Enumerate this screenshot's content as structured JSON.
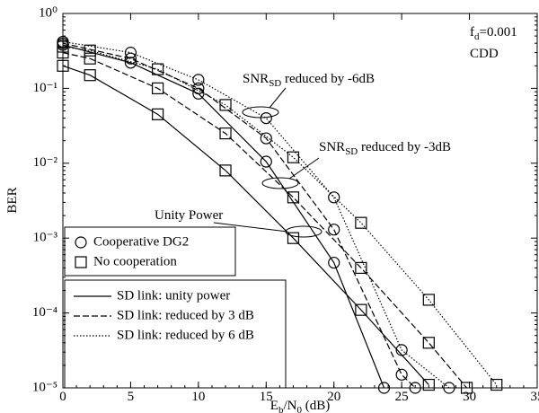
{
  "chart_data": {
    "type": "line",
    "y_label": "BER",
    "x_label": [
      {
        "text": "E"
      },
      {
        "text": "b",
        "sub": true
      },
      {
        "text": "/N"
      },
      {
        "text": "0",
        "sub": true
      },
      {
        "text": " (dB)"
      }
    ],
    "xlim": [
      0,
      35
    ],
    "xticks": [
      0,
      5,
      10,
      15,
      20,
      25,
      30,
      35
    ],
    "ylim": [
      1e-05,
      1
    ],
    "yscale": "log",
    "yticks": [
      {
        "value": 1,
        "label": "10⁰"
      },
      {
        "value": 0.1,
        "label": "10⁻¹"
      },
      {
        "value": 0.01,
        "label": "10⁻²"
      },
      {
        "value": 0.001,
        "label": "10⁻³"
      },
      {
        "value": 0.0001,
        "label": "10⁻⁴"
      },
      {
        "value": 1e-05,
        "label": "10⁻⁵"
      }
    ],
    "series": [
      {
        "marker": "circle",
        "dash": "solid",
        "color": "#000000",
        "x": [
          0,
          5,
          10,
          15,
          20,
          23.7
        ],
        "values": [
          0.38,
          0.22,
          0.085,
          0.0105,
          0.00047,
          1e-05
        ]
      },
      {
        "marker": "circle",
        "dash": "dashed",
        "color": "#000000",
        "x": [
          0,
          5,
          10,
          15,
          20,
          25,
          26
        ],
        "values": [
          0.4,
          0.25,
          0.1,
          0.0215,
          0.0013,
          1.5e-05,
          1e-05
        ]
      },
      {
        "marker": "circle",
        "dash": "dotted",
        "color": "#000000",
        "x": [
          0,
          5,
          10,
          15,
          20,
          25,
          28.5
        ],
        "values": [
          0.42,
          0.3,
          0.13,
          0.04,
          0.0035,
          3.2e-05,
          1e-05
        ]
      },
      {
        "marker": "square",
        "dash": "solid",
        "color": "#000000",
        "x": [
          0,
          2,
          7,
          12,
          17,
          22,
          27
        ],
        "values": [
          0.2,
          0.15,
          0.045,
          0.008,
          0.001,
          0.00011,
          1.1e-05
        ]
      },
      {
        "marker": "square",
        "dash": "dashed",
        "color": "#000000",
        "x": [
          0,
          2,
          7,
          12,
          17,
          22,
          27,
          29.8
        ],
        "values": [
          0.3,
          0.25,
          0.1,
          0.025,
          0.0035,
          0.0004,
          4e-05,
          1e-05
        ]
      },
      {
        "marker": "square",
        "dash": "dotted",
        "color": "#000000",
        "x": [
          0,
          2,
          7,
          12,
          17,
          22,
          27,
          32
        ],
        "values": [
          0.36,
          0.32,
          0.18,
          0.06,
          0.012,
          0.0016,
          0.00015,
          1.1e-05
        ]
      }
    ],
    "marker_legend": [
      {
        "marker": "circle",
        "label": "Cooperative DG2"
      },
      {
        "marker": "square",
        "label": "No cooperation"
      }
    ],
    "line_legend": [
      {
        "dash": "solid",
        "label": "SD link: unity power"
      },
      {
        "dash": "dashed",
        "label": "SD link: reduced by 3 dB"
      },
      {
        "dash": "dotted",
        "label": "SD link: reduced by 6 dB"
      }
    ],
    "annotations": [
      [
        {
          "text": "f"
        },
        {
          "text": "d",
          "sub": true
        },
        {
          "text": "=0.001"
        }
      ],
      [
        {
          "text": "CDD"
        }
      ],
      [
        {
          "text": "SNR"
        },
        {
          "text": "SD",
          "sub": true
        },
        {
          "text": " reduced by -6dB"
        }
      ],
      [
        {
          "text": "SNR"
        },
        {
          "text": "SD",
          "sub": true
        },
        {
          "text": " reduced by -3dB"
        }
      ],
      [
        {
          "text": "Unity Power"
        }
      ]
    ]
  }
}
